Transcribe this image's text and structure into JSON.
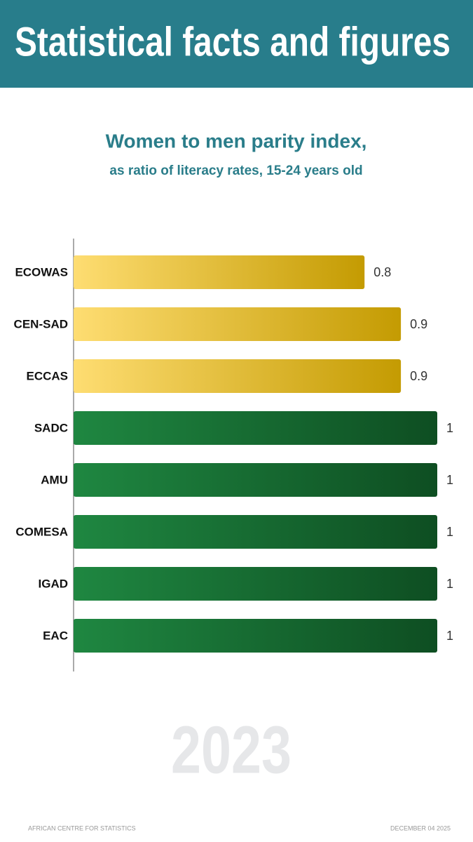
{
  "header": {
    "title": "Statistical facts and figures"
  },
  "chart_data": {
    "type": "hbar",
    "title": "Women to men parity index,",
    "subtitle": "as ratio of literacy rates, 15-24 years old",
    "categories": [
      "ECOWAS",
      "CEN-SAD",
      "ECCAS",
      "SADC",
      "AMU",
      "COMESA",
      "IGAD",
      "EAC"
    ],
    "values": [
      0.8,
      0.9,
      0.9,
      1,
      1,
      1,
      1,
      1
    ],
    "colors": [
      [
        "#fedd72",
        "#c49b02"
      ],
      [
        "#fedd72",
        "#c49b02"
      ],
      [
        "#fedd72",
        "#c49b02"
      ],
      [
        "#1f8741",
        "#0e4e22"
      ],
      [
        "#1f8741",
        "#0e4e22"
      ],
      [
        "#1f8741",
        "#0e4e22"
      ],
      [
        "#1f8741",
        "#0e4e22"
      ],
      [
        "#1f8741",
        "#0e4e22"
      ]
    ],
    "xlim": [
      0,
      1
    ]
  },
  "year": "2023",
  "footer": {
    "left": "AFRICAN CENTRE FOR STATISTICS",
    "right": "DECEMBER 04 2025"
  }
}
